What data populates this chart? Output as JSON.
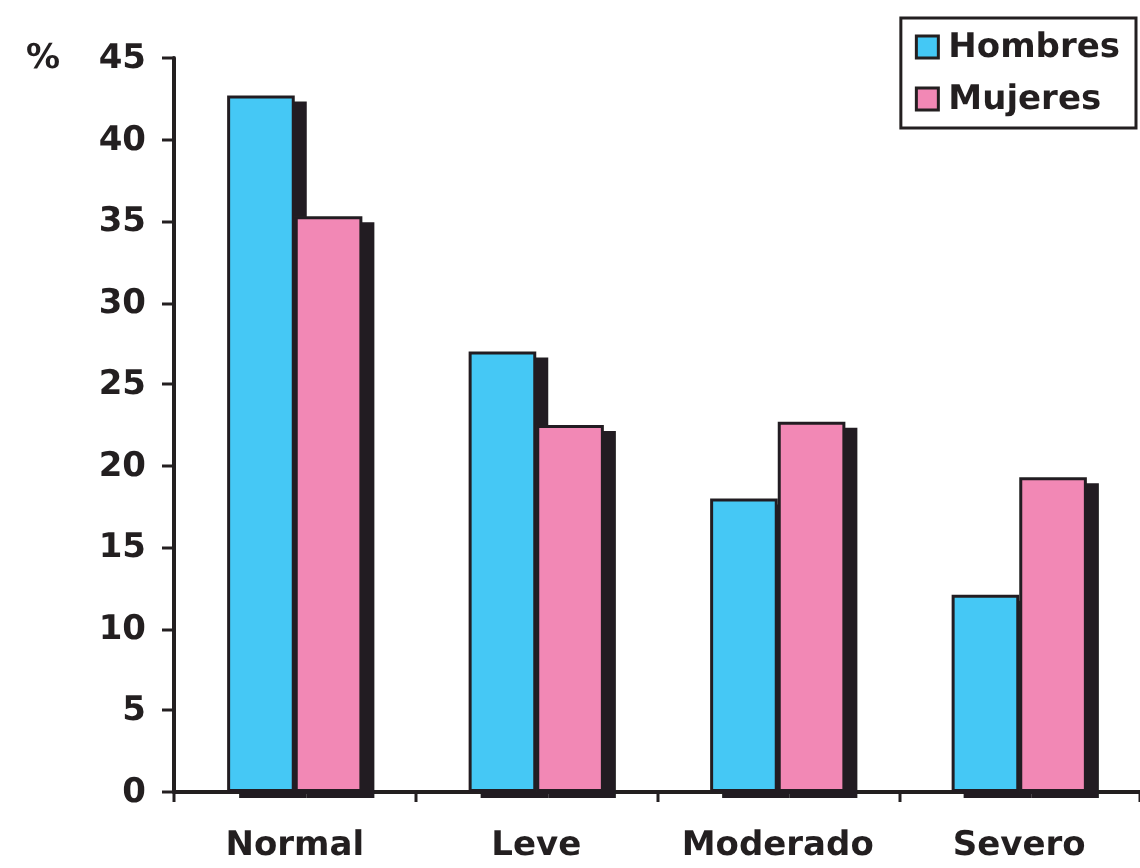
{
  "chart_data": {
    "type": "bar",
    "ylabel": "%",
    "categories": [
      "Normal",
      "Leve",
      "Moderado",
      "Severo"
    ],
    "series": [
      {
        "name": "Hombres",
        "color": "#44c8f5",
        "values": [
          42.7,
          27.0,
          18.0,
          12.1
        ]
      },
      {
        "name": "Mujeres",
        "color": "#f288b5",
        "values": [
          35.3,
          22.5,
          22.7,
          19.3
        ]
      }
    ],
    "ylim": [
      0,
      45
    ],
    "yticks": [
      0,
      5,
      10,
      15,
      20,
      25,
      30,
      35,
      40,
      45
    ],
    "legend": "top right"
  }
}
